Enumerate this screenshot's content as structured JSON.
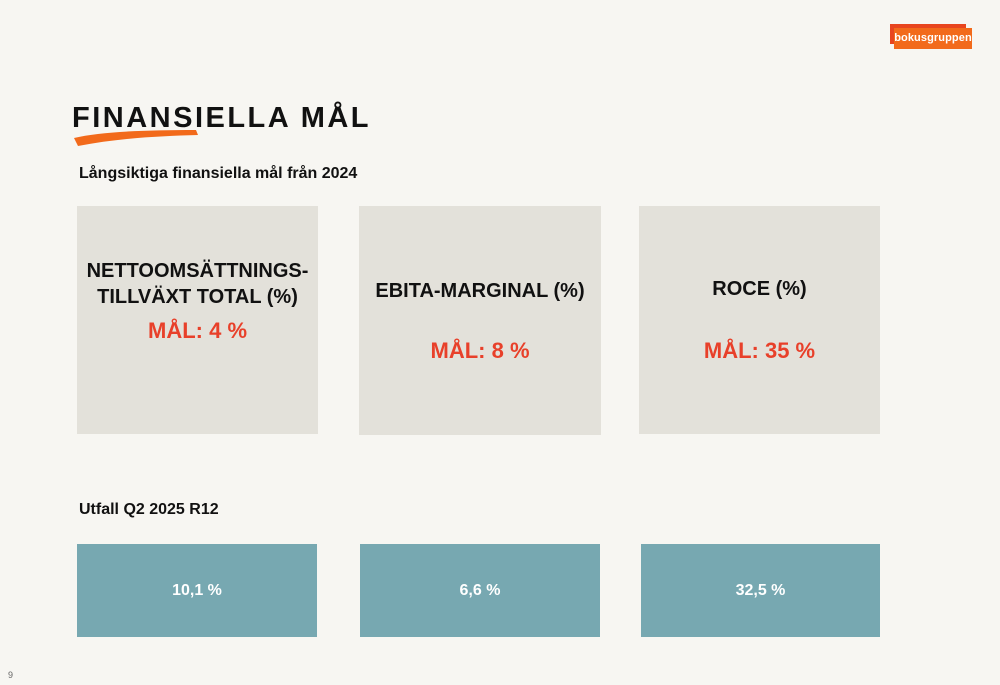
{
  "brand": {
    "logo_text": "bokusgruppen",
    "accent": "#f26a1b"
  },
  "title": "FINANSIELLA MÅL",
  "long_term": {
    "heading": "Långsiktiga finansiella mål från 2024",
    "goals": [
      {
        "name": "NETTOOMSÄTTNINGS-\nTILLVÄXT TOTAL (%)",
        "target": "MÅL: 4 %"
      },
      {
        "name": "EBITA-MARGINAL (%)",
        "target": "MÅL: 8 %"
      },
      {
        "name": "ROCE (%)",
        "target": "MÅL: 35 %"
      }
    ]
  },
  "outcome": {
    "heading": "Utfall Q2 2025 R12",
    "values": [
      "10,1 %",
      "6,6 %",
      "32,5 %"
    ]
  },
  "colors": {
    "target_red": "#e8402a",
    "result_teal": "#77a8b1",
    "card_grey": "#e3e1da"
  },
  "page_number": "9"
}
